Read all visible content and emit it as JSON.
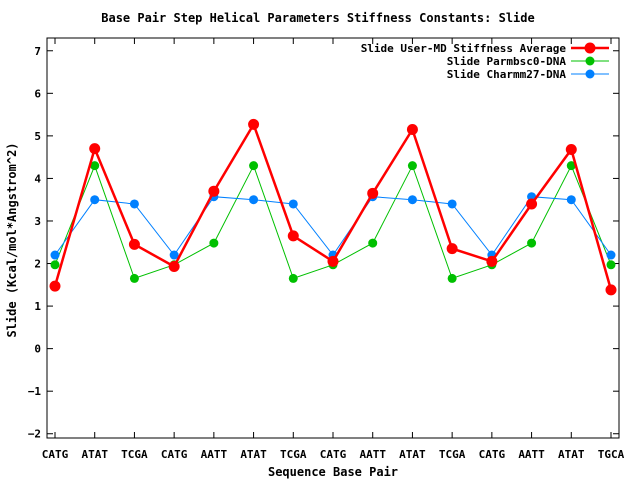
{
  "chart_data": {
    "type": "line",
    "title": "Base Pair Step Helical Parameters Stiffness Constants: Slide",
    "xlabel": "Sequence Base Pair",
    "ylabel": "Slide (Kcal/mol*Angstrom^2)",
    "categories": [
      "CATG",
      "ATAT",
      "TCGA",
      "CATG",
      "AATT",
      "ATAT",
      "TCGA",
      "CATG",
      "AATT",
      "ATAT",
      "TCGA",
      "CATG",
      "AATT",
      "ATAT",
      "TGCA"
    ],
    "yticks": [
      -2,
      -1,
      0,
      1,
      2,
      3,
      4,
      5,
      6,
      7
    ],
    "ylim": [
      -2.1,
      7.3
    ],
    "grid": false,
    "legend_position": "top-right",
    "series": [
      {
        "name": "Slide User-MD Stiffness Average",
        "color": "#ff0000",
        "values": [
          1.47,
          4.7,
          2.45,
          1.93,
          3.7,
          5.27,
          2.65,
          2.05,
          3.65,
          5.15,
          2.35,
          2.05,
          3.4,
          4.68,
          1.38
        ]
      },
      {
        "name": "Slide Parmbsc0-DNA",
        "color": "#00c000",
        "values": [
          1.97,
          4.3,
          1.65,
          1.97,
          2.48,
          4.3,
          1.65,
          1.97,
          2.48,
          4.3,
          1.65,
          1.97,
          2.48,
          4.3,
          1.97
        ]
      },
      {
        "name": "Slide Charmm27-DNA",
        "color": "#0080ff",
        "values": [
          2.2,
          3.5,
          3.4,
          2.2,
          3.57,
          3.5,
          3.4,
          2.2,
          3.57,
          3.5,
          3.4,
          2.2,
          3.57,
          3.5,
          2.2
        ]
      }
    ]
  }
}
